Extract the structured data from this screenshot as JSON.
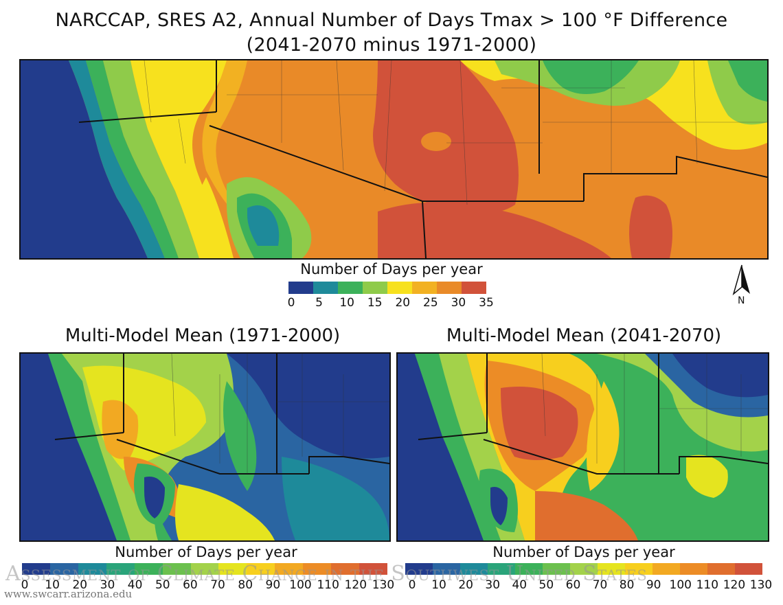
{
  "title_line1": "NARCCAP, SRES A2, Annual Number of Days Tmax > 100 °F Difference",
  "title_line2": "(2041-2070 minus 1971-2000)",
  "top_legend": {
    "title": "Number of Days per year",
    "ticks": [
      "0",
      "5",
      "10",
      "15",
      "20",
      "25",
      "30",
      "35"
    ],
    "colors": [
      "#223c8c",
      "#1e8a9a",
      "#3cb15a",
      "#8fcb4a",
      "#f7e11e",
      "#f2b122",
      "#e98a28",
      "#d1523a"
    ]
  },
  "north_label": "N",
  "left_panel": {
    "title": "Multi-Model Mean (1971-2000)"
  },
  "right_panel": {
    "title": "Multi-Model Mean (2041-2070)"
  },
  "bottom_legend": {
    "title": "Number of Days per year",
    "ticks": [
      "0",
      "10",
      "20",
      "30",
      "40",
      "50",
      "60",
      "70",
      "80",
      "90",
      "100",
      "110",
      "120",
      "130"
    ],
    "colors": [
      "#223c8c",
      "#2a65a2",
      "#1e8a9a",
      "#2aa47a",
      "#3cb15a",
      "#6cc04e",
      "#a3d24a",
      "#e5e41f",
      "#f7cf1e",
      "#f2a922",
      "#ec8c26",
      "#e06e2e",
      "#d1523a"
    ]
  },
  "watermark": "Assessment of Climate Change in the Southwest United States",
  "url": "www.swcarr.arizona.edu"
}
